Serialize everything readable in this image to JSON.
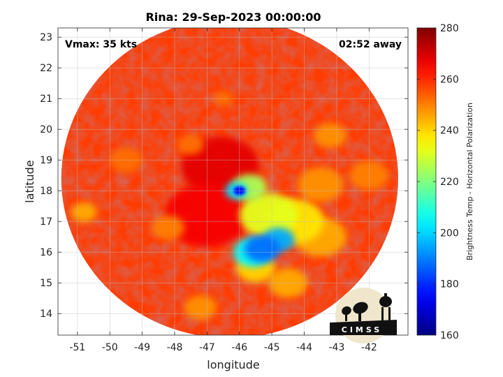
{
  "chart_data": {
    "type": "heatmap",
    "title": "Rina: 29-Sep-2023 00:00:00",
    "annotations": {
      "vmax": "Vmax: 35 kts",
      "time_away": "02:52 away"
    },
    "xlabel": "longitude",
    "ylabel": "latitude",
    "xlim": [
      -51.6,
      -40.8
    ],
    "ylim": [
      13.3,
      23.3
    ],
    "xticks": [
      -51,
      -50,
      -49,
      -48,
      -47,
      -46,
      -45,
      -44,
      -43,
      -42
    ],
    "yticks": [
      14,
      15,
      16,
      17,
      18,
      19,
      20,
      21,
      22,
      23
    ],
    "grid": true,
    "colorbar": {
      "label": "Brightness Temp - Horizontal Polarization",
      "range": [
        160,
        280
      ],
      "ticks": [
        160,
        180,
        200,
        220,
        240,
        260,
        280
      ],
      "colormap": "jet"
    },
    "swath": {
      "center_lon": -46.3,
      "center_lat": 18.4,
      "radius_lon": 5.2,
      "radius_lat": 5.2
    },
    "features": [
      {
        "lon": -46.0,
        "lat": 18.0,
        "temp": 175,
        "size": 0.18
      },
      {
        "lon": -46.1,
        "lat": 18.0,
        "temp": 200,
        "size": 0.35
      },
      {
        "lon": -45.3,
        "lat": 16.1,
        "temp": 188,
        "size": 0.55
      },
      {
        "lon": -44.8,
        "lat": 16.4,
        "temp": 195,
        "size": 0.5
      },
      {
        "lon": -45.6,
        "lat": 16.0,
        "temp": 205,
        "size": 0.6
      },
      {
        "lon": -45.1,
        "lat": 17.2,
        "temp": 232,
        "size": 0.9
      },
      {
        "lon": -44.3,
        "lat": 17.0,
        "temp": 238,
        "size": 0.9
      },
      {
        "lon": -45.7,
        "lat": 18.1,
        "temp": 225,
        "size": 0.55
      },
      {
        "lon": -43.5,
        "lat": 16.5,
        "temp": 245,
        "size": 0.8
      },
      {
        "lon": -45.5,
        "lat": 15.5,
        "temp": 240,
        "size": 0.6
      },
      {
        "lon": -44.5,
        "lat": 15.0,
        "temp": 245,
        "size": 0.6
      },
      {
        "lon": -43.5,
        "lat": 18.2,
        "temp": 248,
        "size": 0.7
      },
      {
        "lon": -43.2,
        "lat": 19.8,
        "temp": 248,
        "size": 0.5
      },
      {
        "lon": -42.0,
        "lat": 18.5,
        "temp": 250,
        "size": 0.6
      },
      {
        "lon": -48.2,
        "lat": 16.8,
        "temp": 250,
        "size": 0.5
      },
      {
        "lon": -47.5,
        "lat": 19.5,
        "temp": 252,
        "size": 0.4
      },
      {
        "lon": -46.5,
        "lat": 21.0,
        "temp": 252,
        "size": 0.3
      },
      {
        "lon": -50.8,
        "lat": 17.3,
        "temp": 245,
        "size": 0.4
      },
      {
        "lon": -47.2,
        "lat": 14.2,
        "temp": 248,
        "size": 0.5
      },
      {
        "lon": -49.5,
        "lat": 19.0,
        "temp": 252,
        "size": 0.5
      },
      {
        "lon": -46.6,
        "lat": 18.8,
        "temp": 268,
        "size": 1.2
      },
      {
        "lon": -47.0,
        "lat": 17.2,
        "temp": 266,
        "size": 1.3
      }
    ],
    "logo": "CIMSS"
  }
}
